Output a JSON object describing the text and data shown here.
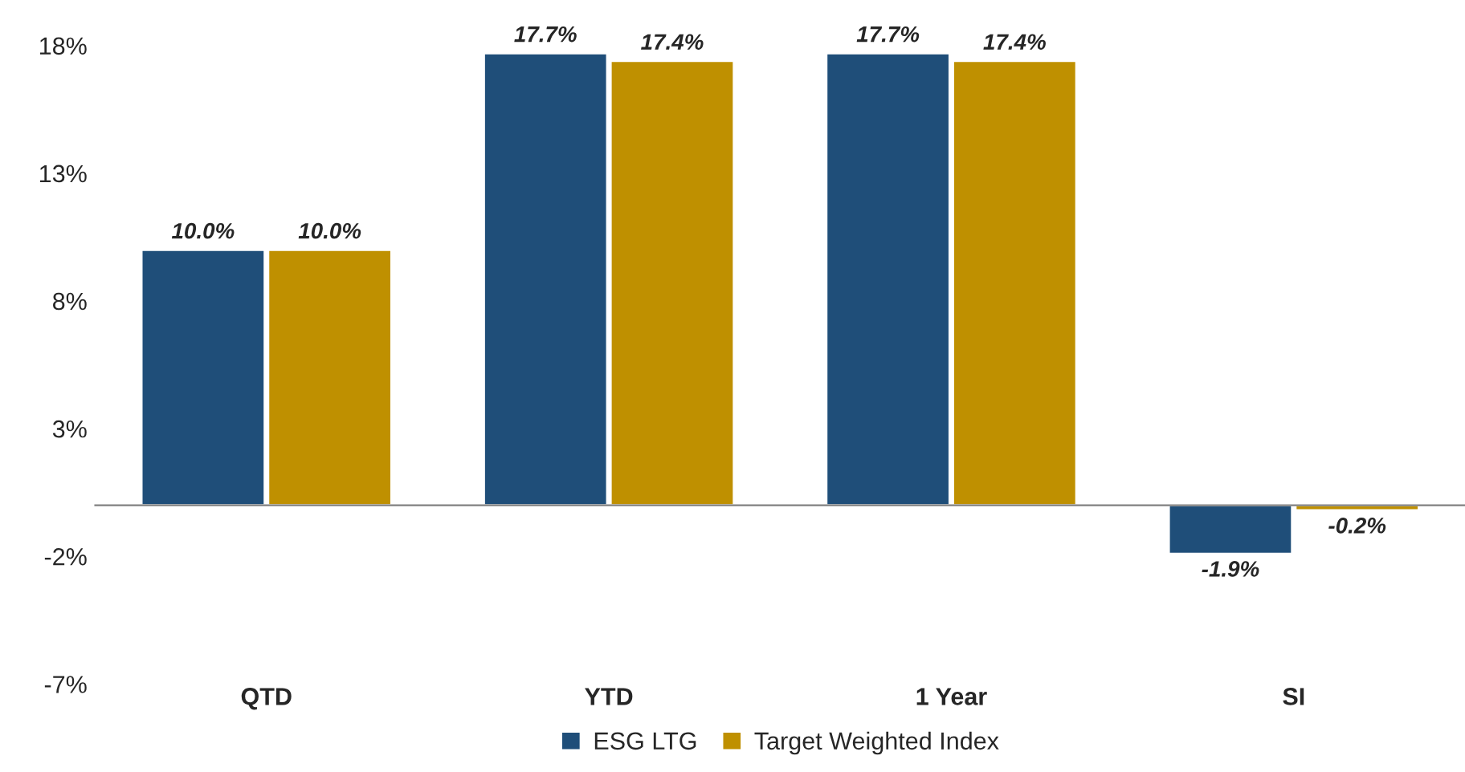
{
  "chart_data": {
    "type": "bar",
    "categories": [
      "QTD",
      "YTD",
      "1 Year",
      "SI"
    ],
    "series": [
      {
        "name": "ESG LTG",
        "color": "#1f4e79",
        "values": [
          10.0,
          17.7,
          17.7,
          -1.9
        ],
        "value_labels": [
          "10.0%",
          "17.7%",
          "17.7%",
          "-1.9%"
        ]
      },
      {
        "name": "Target Weighted Index",
        "color": "#bf9000",
        "values": [
          10.0,
          17.4,
          17.4,
          -0.2
        ],
        "value_labels": [
          "10.0%",
          "17.4%",
          "17.4%",
          "-0.2%"
        ]
      }
    ],
    "ylim": [
      -7,
      18
    ],
    "yticks": [
      {
        "value": -7,
        "label": "-7%"
      },
      {
        "value": -2,
        "label": "-2%"
      },
      {
        "value": 3,
        "label": "3%"
      },
      {
        "value": 8,
        "label": "8%"
      },
      {
        "value": 13,
        "label": "13%"
      },
      {
        "value": 18,
        "label": "18%"
      }
    ],
    "grid": false,
    "legend": "bottom"
  }
}
